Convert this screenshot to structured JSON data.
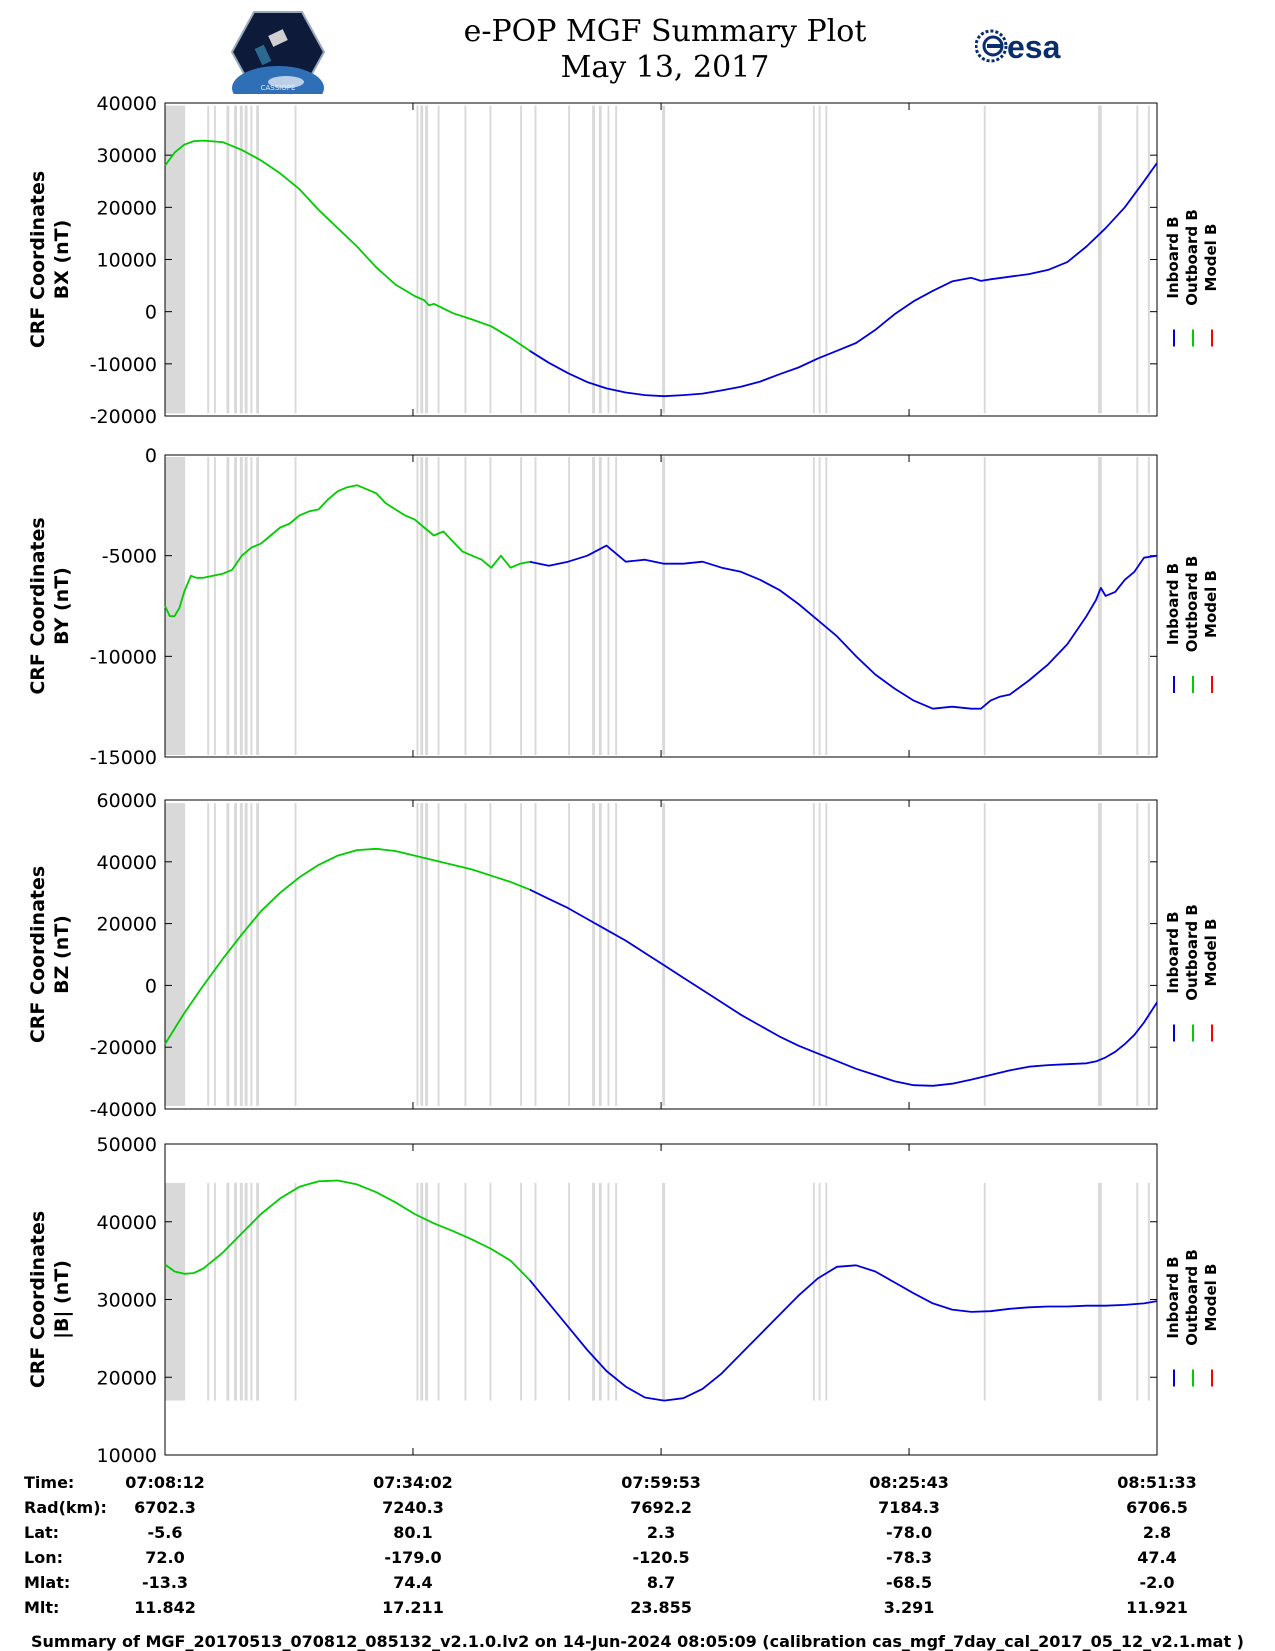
{
  "title_line1": "e-POP MGF Summary Plot",
  "title_line2": "May 13, 2017",
  "logo_right_text": "esa",
  "logo_left_text": "CASSIOPE",
  "colors": {
    "inboard": "#0000dd",
    "outboard": "#00cc00",
    "model": "#ff0000",
    "gap": "#d9d9d9"
  },
  "footer": "Summary of MGF_20170513_070812_085132_v2.1.0.lv2 on 14-Jun-2024 08:05:09 (calibration cas_mgf_7day_cal_2017_05_12_v2.1.mat )",
  "ephemeris": {
    "labels": [
      "Time:",
      "Rad(km):",
      "Lat:",
      "Lon:",
      "Mlat:",
      "Mlt:"
    ],
    "columns": [
      [
        "07:08:12",
        "6702.3",
        "-5.6",
        "72.0",
        "-13.3",
        "11.842"
      ],
      [
        "07:34:02",
        "7240.3",
        "80.1",
        "-179.0",
        "74.4",
        "17.211"
      ],
      [
        "07:59:53",
        "7692.2",
        "2.3",
        "-120.5",
        "8.7",
        "23.855"
      ],
      [
        "08:25:43",
        "7184.3",
        "-78.0",
        "-78.3",
        "-68.5",
        "3.291"
      ],
      [
        "08:51:33",
        "6706.5",
        "2.8",
        "47.4",
        "-2.0",
        "11.921"
      ]
    ]
  },
  "chart_data": {
    "type": "line",
    "x_unit": "minutes since 07:08:12",
    "x_range": [
      0,
      103.35
    ],
    "tick_minutes": [
      0,
      25.833,
      51.683,
      77.517,
      103.35
    ],
    "legend": [
      "Inboard B",
      "Outboard B",
      "Model B"
    ],
    "outboard_end_minute": 38,
    "gap_intervals": [
      [
        0,
        2.1
      ],
      [
        4.4,
        4.6
      ],
      [
        5.1,
        5.3
      ],
      [
        6.4,
        6.7
      ],
      [
        7.2,
        7.5
      ],
      [
        7.8,
        8.1
      ],
      [
        8.3,
        8.6
      ],
      [
        8.9,
        9.1
      ],
      [
        9.5,
        9.8
      ],
      [
        13.5,
        13.7
      ],
      [
        26.2,
        26.4
      ],
      [
        26.6,
        26.9
      ],
      [
        27.1,
        27.4
      ],
      [
        28.4,
        28.6
      ],
      [
        31.2,
        31.4
      ],
      [
        33.8,
        34.0
      ],
      [
        37.0,
        37.2
      ],
      [
        38.5,
        38.7
      ],
      [
        42.0,
        42.2
      ],
      [
        44.5,
        44.8
      ],
      [
        45.2,
        45.5
      ],
      [
        46.1,
        46.3
      ],
      [
        46.9,
        47.1
      ],
      [
        51.8,
        52.1
      ],
      [
        67.5,
        67.7
      ],
      [
        68.1,
        68.3
      ],
      [
        68.8,
        69.0
      ],
      [
        85.3,
        85.5
      ],
      [
        97.2,
        97.6
      ],
      [
        101.2,
        101.4
      ],
      [
        102.4,
        102.6
      ]
    ],
    "panels": [
      {
        "ylabel": "CRF Coordinates",
        "ylabel2": "BX (nT)",
        "ylim": [
          -20000,
          40000
        ],
        "yticks": [
          -20000,
          -10000,
          0,
          10000,
          20000,
          30000,
          40000
        ],
        "gap_band": [
          -19500,
          39500
        ],
        "x": [
          0,
          1,
          2,
          3,
          4,
          6,
          8,
          10,
          12,
          13,
          14,
          15,
          16,
          18,
          20,
          22,
          24,
          26,
          27,
          27.5,
          28,
          30,
          32,
          34,
          36,
          38,
          40,
          42,
          44,
          46,
          48,
          50,
          52,
          54,
          56,
          58,
          60,
          62,
          64,
          66,
          68,
          70,
          72,
          74,
          75,
          76,
          78,
          80,
          82,
          84,
          85,
          86,
          88,
          90,
          92,
          94,
          96,
          98,
          100,
          102,
          103.35
        ],
        "y": [
          28000,
          30500,
          32000,
          32700,
          32800,
          32500,
          31000,
          29000,
          26500,
          25000,
          23500,
          21500,
          19500,
          16000,
          12500,
          8500,
          5200,
          3000,
          2200,
          1200,
          1500,
          -300,
          -1500,
          -2800,
          -5000,
          -7500,
          -9800,
          -11800,
          -13500,
          -14700,
          -15500,
          -16000,
          -16200,
          -16000,
          -15700,
          -15100,
          -14400,
          -13400,
          -12000,
          -10700,
          -9000,
          -7500,
          -6000,
          -3500,
          -2000,
          -500,
          2000,
          4000,
          5800,
          6500,
          5900,
          6200,
          6700,
          7200,
          8000,
          9500,
          12500,
          16000,
          20000,
          25000,
          28500
        ]
      },
      {
        "ylabel": "CRF Coordinates",
        "ylabel2": "BY (nT)",
        "ylim": [
          -15000,
          0
        ],
        "yticks": [
          -15000,
          -10000,
          -5000,
          0
        ],
        "gap_band": [
          -14900,
          -100
        ],
        "x": [
          0,
          0.5,
          1,
          1.5,
          2,
          2.7,
          3.3,
          4,
          5,
          6,
          7,
          8,
          9,
          10,
          11,
          12,
          13,
          14,
          15,
          16,
          17,
          18,
          19,
          20,
          21,
          22,
          23,
          24,
          25,
          26,
          27,
          28,
          29,
          30,
          31,
          32,
          33,
          34,
          35,
          36,
          37,
          38,
          40,
          42,
          44,
          46,
          48,
          50,
          52,
          54,
          56,
          58,
          60,
          62,
          64,
          66,
          68,
          70,
          72,
          74,
          76,
          78,
          80,
          82,
          84,
          85,
          86,
          87,
          88,
          90,
          92,
          94,
          96,
          97,
          97.5,
          98,
          99,
          100,
          101,
          102,
          103.35
        ],
        "y": [
          -7500,
          -8000,
          -8000,
          -7600,
          -6800,
          -6000,
          -6100,
          -6100,
          -6000,
          -5900,
          -5700,
          -5000,
          -4600,
          -4400,
          -4000,
          -3600,
          -3400,
          -3000,
          -2800,
          -2700,
          -2200,
          -1800,
          -1600,
          -1500,
          -1700,
          -1900,
          -2400,
          -2700,
          -3000,
          -3200,
          -3600,
          -4000,
          -3800,
          -4300,
          -4800,
          -5000,
          -5200,
          -5600,
          -5000,
          -5600,
          -5400,
          -5300,
          -5500,
          -5300,
          -5000,
          -4500,
          -5300,
          -5200,
          -5400,
          -5400,
          -5300,
          -5600,
          -5800,
          -6200,
          -6700,
          -7400,
          -8200,
          -9000,
          -10000,
          -10900,
          -11600,
          -12200,
          -12600,
          -12500,
          -12600,
          -12600,
          -12200,
          -12000,
          -11900,
          -11200,
          -10400,
          -9400,
          -8000,
          -7200,
          -6600,
          -7000,
          -6800,
          -6200,
          -5800,
          -5100,
          -5000
        ]
      },
      {
        "ylabel": "CRF Coordinates",
        "ylabel2": "BZ (nT)",
        "ylim": [
          -40000,
          60000
        ],
        "yticks": [
          -40000,
          -20000,
          0,
          20000,
          40000,
          60000
        ],
        "gap_band": [
          -39000,
          59000
        ],
        "x": [
          0,
          2,
          4,
          6,
          8,
          10,
          12,
          14,
          16,
          18,
          20,
          22,
          24,
          26,
          28,
          30,
          32,
          34,
          36,
          38,
          40,
          42,
          44,
          46,
          48,
          50,
          52,
          54,
          56,
          58,
          60,
          62,
          64,
          66,
          68,
          70,
          72,
          74,
          76,
          78,
          80,
          82,
          84,
          86,
          88,
          90,
          92,
          94,
          96,
          97,
          98,
          99,
          100,
          101,
          102,
          103.35
        ],
        "y": [
          -19000,
          -9000,
          0,
          8500,
          16500,
          24000,
          30000,
          35000,
          39000,
          42000,
          43800,
          44200,
          43500,
          42000,
          40500,
          39000,
          37500,
          35500,
          33500,
          31000,
          28000,
          25000,
          21500,
          18000,
          14500,
          10500,
          6500,
          2500,
          -1500,
          -5500,
          -9500,
          -13000,
          -16500,
          -19500,
          -22000,
          -24500,
          -27000,
          -29000,
          -31000,
          -32300,
          -32500,
          -31800,
          -30500,
          -29000,
          -27500,
          -26300,
          -25800,
          -25500,
          -25200,
          -24600,
          -23300,
          -21500,
          -19000,
          -16000,
          -12000,
          -5500
        ]
      },
      {
        "ylabel": "CRF Coordinates",
        "ylabel2": "|B| (nT)",
        "ylim": [
          10000,
          50000
        ],
        "yticks": [
          10000,
          20000,
          30000,
          40000,
          50000
        ],
        "gap_band": [
          17000,
          45000
        ],
        "x": [
          0,
          1,
          2,
          3,
          4,
          6,
          8,
          10,
          12,
          14,
          16,
          18,
          20,
          22,
          24,
          26,
          28,
          30,
          32,
          34,
          36,
          38,
          40,
          42,
          44,
          46,
          48,
          50,
          52,
          54,
          56,
          58,
          60,
          62,
          64,
          66,
          68,
          70,
          72,
          74,
          76,
          78,
          80,
          82,
          84,
          86,
          88,
          90,
          92,
          94,
          96,
          98,
          100,
          102,
          103.35
        ],
        "y": [
          34500,
          33600,
          33300,
          33400,
          34000,
          36000,
          38500,
          41000,
          43000,
          44500,
          45200,
          45300,
          44800,
          43800,
          42500,
          41000,
          39800,
          38800,
          37700,
          36500,
          35000,
          32500,
          29500,
          26500,
          23500,
          20800,
          18800,
          17400,
          17000,
          17300,
          18500,
          20500,
          23000,
          25500,
          28000,
          30500,
          32700,
          34200,
          34400,
          33600,
          32200,
          30800,
          29500,
          28700,
          28400,
          28500,
          28800,
          29000,
          29100,
          29100,
          29200,
          29200,
          29300,
          29500,
          29800
        ]
      }
    ]
  }
}
